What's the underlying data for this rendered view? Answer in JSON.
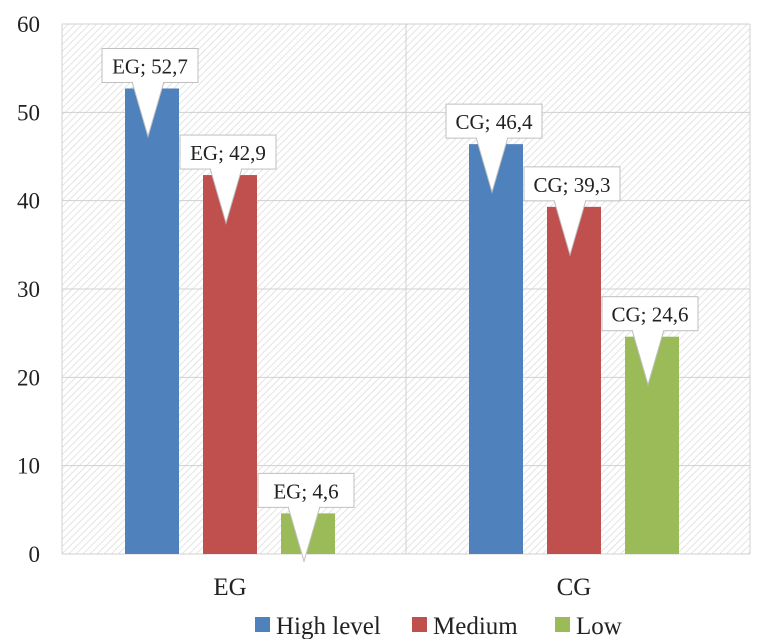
{
  "chart_data": {
    "type": "bar",
    "categories": [
      "EG",
      "CG"
    ],
    "series": [
      {
        "name": "High level",
        "values": [
          52.7,
          46.4
        ],
        "color": "#4F81BD",
        "labels": [
          "EG; 52,7",
          "CG; 46,4"
        ]
      },
      {
        "name": "Medium",
        "values": [
          42.9,
          39.3
        ],
        "color": "#C0504D",
        "labels": [
          "EG; 42,9",
          "CG; 39,3"
        ]
      },
      {
        "name": "Low",
        "values": [
          4.6,
          24.6
        ],
        "color": "#9BBB59",
        "labels": [
          "EG; 4,6",
          "CG; 24,6"
        ]
      }
    ],
    "ylim": [
      0,
      60
    ],
    "yticks": [
      "0",
      "10",
      "20",
      "30",
      "40",
      "50",
      "60"
    ],
    "grid": true,
    "legend_position": "bottom",
    "title": "",
    "xlabel": "",
    "ylabel": ""
  }
}
